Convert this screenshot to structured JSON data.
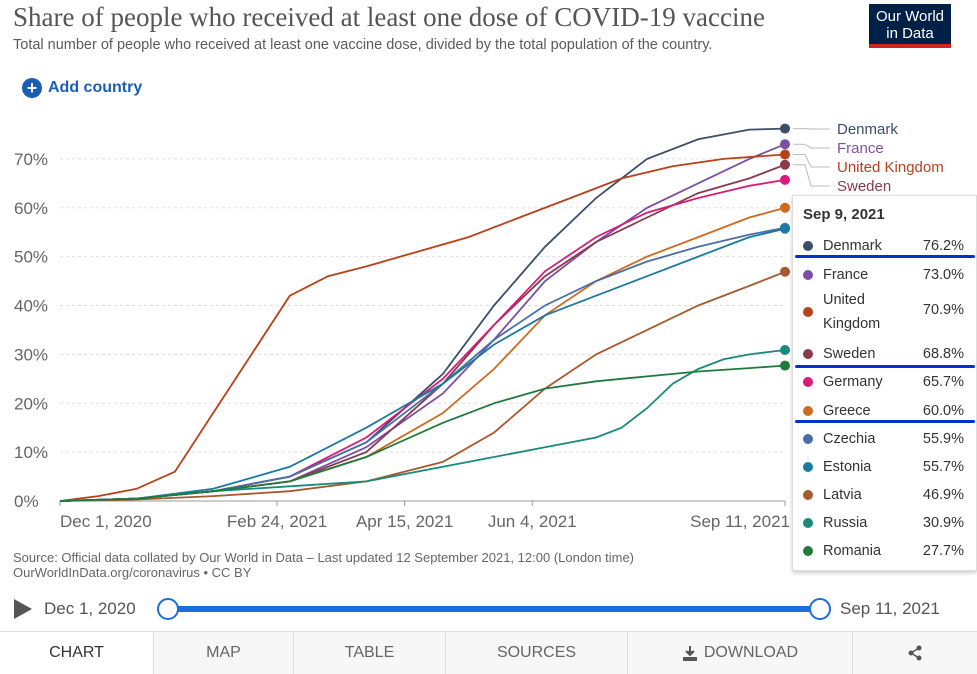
{
  "header": {
    "title": "Share of people who received at least one dose of COVID-19 vaccine",
    "subtitle": "Total number of people who received at least one vaccine dose, divided by the total population of the country.",
    "logo_line1": "Our World",
    "logo_line2": "in Data"
  },
  "add_country_label": "Add country",
  "colors": {
    "accent": "#1a5fb4",
    "grid": "#dddddd",
    "highlight": "#0033cc"
  },
  "chart_data": {
    "type": "line",
    "ylim": [
      0,
      80
    ],
    "yticks": [
      "0%",
      "10%",
      "20%",
      "30%",
      "40%",
      "50%",
      "60%",
      "70%"
    ],
    "ytick_values": [
      0,
      10,
      20,
      30,
      40,
      50,
      60,
      70
    ],
    "xticks": [
      "Dec 1, 2020",
      "Feb 24, 2021",
      "Apr 15, 2021",
      "Jun 4, 2021",
      "Sep 11, 2021"
    ],
    "xtick_days": [
      0,
      85,
      135,
      185,
      284
    ],
    "xrange_days": [
      0,
      284
    ],
    "series": [
      {
        "name": "Denmark",
        "color": "#3d4e6a",
        "x": [
          0,
          30,
          60,
          90,
          120,
          150,
          170,
          190,
          210,
          230,
          250,
          270,
          284
        ],
        "y": [
          0,
          0.5,
          2,
          5,
          12,
          26,
          40,
          52,
          62,
          70,
          74,
          76,
          76.2
        ]
      },
      {
        "name": "France",
        "color": "#7b4fa6",
        "x": [
          0,
          30,
          60,
          90,
          120,
          150,
          170,
          190,
          210,
          230,
          250,
          270,
          284
        ],
        "y": [
          0,
          0.5,
          2,
          4,
          11,
          22,
          33,
          45,
          53,
          60,
          65,
          70,
          73.0
        ]
      },
      {
        "name": "United Kingdom",
        "color": "#b9401a",
        "x": [
          0,
          15,
          30,
          45,
          60,
          75,
          90,
          105,
          120,
          140,
          160,
          180,
          200,
          220,
          240,
          260,
          284
        ],
        "y": [
          0,
          1,
          2.5,
          6,
          18,
          30,
          42,
          46,
          48,
          51,
          54,
          58,
          62,
          66,
          68.5,
          70,
          70.9
        ]
      },
      {
        "name": "Sweden",
        "color": "#8a3b4b",
        "x": [
          0,
          30,
          60,
          90,
          120,
          150,
          170,
          190,
          210,
          230,
          250,
          270,
          284
        ],
        "y": [
          0,
          0.5,
          2,
          4,
          10,
          24,
          36,
          46,
          53,
          58,
          63,
          66,
          68.8
        ]
      },
      {
        "name": "Germany",
        "color": "#d81b7a",
        "x": [
          0,
          30,
          60,
          90,
          120,
          150,
          170,
          190,
          210,
          230,
          250,
          270,
          284
        ],
        "y": [
          0,
          0.5,
          2,
          5,
          13,
          25,
          36,
          47,
          54,
          59,
          62,
          64.5,
          65.7
        ]
      },
      {
        "name": "Greece",
        "color": "#d06a20",
        "x": [
          0,
          30,
          60,
          90,
          120,
          150,
          170,
          190,
          210,
          230,
          250,
          270,
          284
        ],
        "y": [
          0,
          0.5,
          2,
          4,
          9,
          18,
          27,
          38,
          45,
          50,
          54,
          58,
          60.0
        ]
      },
      {
        "name": "Czechia",
        "color": "#4a6fa5",
        "x": [
          0,
          30,
          60,
          90,
          120,
          150,
          170,
          190,
          210,
          230,
          250,
          270,
          284
        ],
        "y": [
          0,
          0.5,
          2,
          5,
          12,
          24,
          33,
          40,
          45,
          49,
          52,
          54.5,
          55.9
        ]
      },
      {
        "name": "Estonia",
        "color": "#1a7aa0",
        "x": [
          0,
          30,
          60,
          90,
          120,
          150,
          170,
          190,
          210,
          230,
          250,
          270,
          284
        ],
        "y": [
          0,
          0.5,
          2.5,
          7,
          15,
          24,
          32,
          38,
          42,
          46,
          50,
          54,
          55.7
        ]
      },
      {
        "name": "Latvia",
        "color": "#a65a2e",
        "x": [
          0,
          30,
          60,
          90,
          120,
          150,
          170,
          190,
          210,
          230,
          250,
          270,
          284
        ],
        "y": [
          0,
          0.3,
          1,
          2,
          4,
          8,
          14,
          23,
          30,
          35,
          40,
          44,
          46.9
        ]
      },
      {
        "name": "Russia",
        "color": "#1a8a7a",
        "x": [
          0,
          30,
          60,
          90,
          120,
          150,
          170,
          190,
          210,
          220,
          230,
          240,
          250,
          260,
          270,
          284
        ],
        "y": [
          0,
          0.5,
          2,
          3,
          4,
          7,
          9,
          11,
          13,
          15,
          19,
          24,
          27,
          29,
          30,
          30.9
        ]
      },
      {
        "name": "Romania",
        "color": "#1f7a3e",
        "x": [
          0,
          30,
          60,
          90,
          120,
          150,
          170,
          190,
          210,
          230,
          250,
          270,
          284
        ],
        "y": [
          0,
          0.5,
          2,
          4,
          9,
          16,
          20,
          23,
          24.5,
          25.5,
          26.5,
          27.2,
          27.7
        ]
      }
    ],
    "end_labels": [
      "Denmark",
      "France",
      "United Kingdom",
      "Sweden"
    ]
  },
  "tooltip": {
    "date": "Sep 9, 2021",
    "rows": [
      {
        "name": "Denmark",
        "value": "76.2%",
        "color": "#3d4e6a"
      },
      {
        "name": "France",
        "value": "73.0%",
        "color": "#7b4fa6"
      },
      {
        "name": "United Kingdom",
        "name_line1": "United",
        "name_line2": "Kingdom",
        "value": "70.9%",
        "color": "#b9401a"
      },
      {
        "name": "Sweden",
        "value": "68.8%",
        "color": "#8a3b4b"
      },
      {
        "name": "Germany",
        "value": "65.7%",
        "color": "#d81b7a"
      },
      {
        "name": "Greece",
        "value": "60.0%",
        "color": "#d06a20"
      },
      {
        "name": "Czechia",
        "value": "55.9%",
        "color": "#4a6fa5"
      },
      {
        "name": "Estonia",
        "value": "55.7%",
        "color": "#1a7aa0"
      },
      {
        "name": "Latvia",
        "value": "46.9%",
        "color": "#a65a2e"
      },
      {
        "name": "Russia",
        "value": "30.9%",
        "color": "#1a8a7a"
      },
      {
        "name": "Romania",
        "value": "27.7%",
        "color": "#1f7a3e"
      }
    ]
  },
  "source": {
    "line1": "Source: Official data collated by Our World in Data – Last updated 12 September 2021, 12:00 (London time)",
    "line2": "OurWorldInData.org/coronavirus • CC BY"
  },
  "timeline": {
    "start": "Dec 1, 2020",
    "end": "Sep 11, 2021"
  },
  "tabs": [
    {
      "label": "CHART",
      "icon": ""
    },
    {
      "label": "MAP",
      "icon": ""
    },
    {
      "label": "TABLE",
      "icon": ""
    },
    {
      "label": "SOURCES",
      "icon": ""
    },
    {
      "label": "DOWNLOAD",
      "icon": "download-icon"
    },
    {
      "label": "",
      "icon": "share-icon"
    }
  ]
}
